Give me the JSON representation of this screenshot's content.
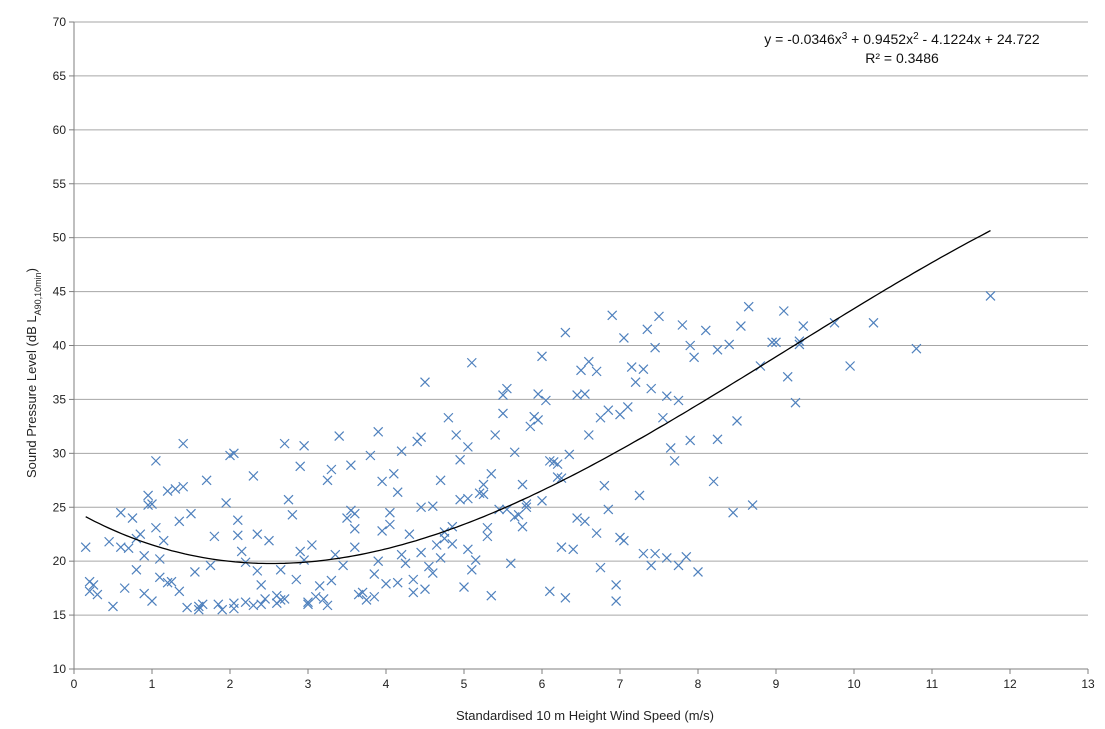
{
  "chart_data": {
    "type": "scatter",
    "title": "",
    "xlabel": "Standardised 10 m Height Wind Speed (m/s)",
    "ylabel_main": "Sound Pressure Level (dB L",
    "ylabel_sub": "A90,10min",
    "ylabel_close": ")",
    "xlim": [
      0,
      13
    ],
    "ylim": [
      10,
      70
    ],
    "x_ticks": [
      "0",
      "1",
      "2",
      "3",
      "4",
      "5",
      "6",
      "7",
      "8",
      "9",
      "10",
      "11",
      "12",
      "13"
    ],
    "y_ticks": [
      "10",
      "15",
      "20",
      "25",
      "30",
      "35",
      "40",
      "45",
      "50",
      "55",
      "60",
      "65",
      "70"
    ],
    "grid": "horizontal",
    "marker": "x",
    "colors": {
      "points": "#4f81bd",
      "trendline": "#000000"
    },
    "trendline": {
      "type": "polynomial",
      "order": 3,
      "coefficients": [
        -0.0346,
        0.9452,
        -4.1224,
        24.722
      ],
      "x_range": [
        0.15,
        11.75
      ],
      "equation_label_1": "y = -0.0346x",
      "equation_label_2": " + 0.9452x",
      "equation_label_3": " - 4.1224x + 24.722",
      "superscript_3": "3",
      "superscript_2": "2",
      "r2_label": "R² = 0.3486"
    },
    "series": [
      {
        "marker": "x",
        "x": [
          0.15,
          0.2,
          0.25,
          0.3,
          0.2,
          0.45,
          0.6,
          0.65,
          0.7,
          0.75,
          0.8,
          0.85,
          0.9,
          0.95,
          1.0,
          1.05,
          1.1,
          0.9,
          1.0,
          1.15,
          1.2,
          1.3,
          1.35,
          1.4,
          1.5,
          1.55,
          1.6,
          1.7,
          1.8,
          1.9,
          2.0,
          2.05,
          2.1,
          2.2,
          2.3,
          2.4,
          2.5,
          2.6,
          2.7,
          2.8,
          2.9,
          3.0,
          1.05,
          1.25,
          1.4,
          0.6,
          0.95,
          1.65,
          1.95,
          2.15,
          2.35,
          2.75,
          2.95,
          3.1,
          3.25,
          3.4,
          3.6,
          3.75,
          3.9,
          4.05,
          4.2,
          4.35,
          4.5,
          4.65,
          4.8,
          4.95,
          5.1,
          5.25,
          5.4,
          5.55,
          5.7,
          5.85,
          6.0,
          6.15,
          6.3,
          6.45,
          6.6,
          6.75,
          6.9,
          7.05,
          7.2,
          7.35,
          7.5,
          7.65,
          7.8,
          7.95,
          8.1,
          8.25,
          8.4,
          8.55,
          8.65,
          8.8,
          9.0,
          9.1,
          9.15,
          9.25,
          9.3,
          9.35,
          9.75,
          9.95,
          10.25,
          10.8,
          11.75,
          4.55,
          5.15,
          6.3,
          6.95,
          7.45,
          7.75,
          8.0,
          8.25,
          8.5,
          8.95,
          9.3,
          3.45,
          3.6,
          3.9,
          4.1,
          4.3,
          4.45,
          4.7,
          4.85,
          5.05,
          5.3,
          5.5,
          5.75,
          5.95,
          6.2,
          6.5,
          6.8,
          7.1,
          7.4,
          7.7,
          7.9,
          2.05,
          2.2,
          2.45,
          2.65,
          2.85,
          3.05,
          3.3,
          3.55,
          3.8,
          4.0,
          4.25,
          4.4,
          4.6,
          4.9,
          5.0,
          5.2,
          5.45,
          5.65,
          5.9,
          6.1,
          6.35,
          6.6,
          6.85,
          7.0,
          7.3,
          7.55,
          7.85,
          3.2,
          3.5,
          3.7,
          3.95,
          4.15,
          4.5,
          4.75,
          5.1,
          5.35,
          5.6,
          5.8,
          6.05,
          6.25,
          6.55,
          6.7,
          6.95,
          7.25,
          7.6,
          2.3,
          2.6,
          2.9,
          3.15,
          3.35,
          3.65,
          3.85,
          4.05,
          4.35,
          4.6,
          4.85,
          5.05,
          5.3,
          5.55,
          5.75,
          6.0,
          6.2,
          6.45,
          6.75,
          7.05,
          7.4,
          0.5,
          0.8,
          1.1,
          1.35,
          1.6,
          1.85,
          2.1,
          2.4,
          2.7,
          3.0,
          3.3,
          3.6,
          3.95,
          4.2,
          4.45,
          4.7,
          4.95,
          5.25,
          5.5,
          5.8,
          6.1,
          6.4,
          6.7,
          7.0,
          7.3,
          7.6,
          7.9,
          8.2,
          8.45,
          8.7,
          1.2,
          1.45,
          1.75,
          2.05,
          2.35,
          2.65,
          2.95,
          3.25,
          3.55,
          3.85,
          4.15,
          4.45,
          4.75,
          5.05,
          5.35,
          5.65,
          5.95,
          6.25,
          6.55,
          6.85,
          7.15,
          7.45,
          7.75
        ],
        "y": [
          21.3,
          17.2,
          17.8,
          16.9,
          18.1,
          21.8,
          24.5,
          17.5,
          21.2,
          24.0,
          19.2,
          22.5,
          17.0,
          26.1,
          16.3,
          29.3,
          20.2,
          20.5,
          25.3,
          21.9,
          18.0,
          26.7,
          17.2,
          30.9,
          24.4,
          19.0,
          15.8,
          27.5,
          22.3,
          15.5,
          29.8,
          30.0,
          23.8,
          16.2,
          27.9,
          17.8,
          21.9,
          16.1,
          30.9,
          24.3,
          28.8,
          16.0,
          23.1,
          18.1,
          26.9,
          21.3,
          25.2,
          16.0,
          25.4,
          20.9,
          22.5,
          25.7,
          30.7,
          16.7,
          27.5,
          31.6,
          23.0,
          16.4,
          32.0,
          24.5,
          30.2,
          17.1,
          36.6,
          21.5,
          33.3,
          25.7,
          38.4,
          27.1,
          31.7,
          36.0,
          24.3,
          32.5,
          39.0,
          29.2,
          41.2,
          35.4,
          38.5,
          33.3,
          42.8,
          40.7,
          36.6,
          41.5,
          42.7,
          30.5,
          41.9,
          38.9,
          41.4,
          39.6,
          40.1,
          41.8,
          43.6,
          38.1,
          40.3,
          43.2,
          37.1,
          34.7,
          40.1,
          41.8,
          42.1,
          38.1,
          42.1,
          39.7,
          44.6,
          19.5,
          20.1,
          16.6,
          17.8,
          20.7,
          19.6,
          19.0,
          31.3,
          33.0,
          40.3,
          40.4,
          19.6,
          21.3,
          20.0,
          28.1,
          22.5,
          25.0,
          27.5,
          23.2,
          30.6,
          22.3,
          33.7,
          27.1,
          35.5,
          29.0,
          37.7,
          27.0,
          34.3,
          36.0,
          29.3,
          31.2,
          16.1,
          19.9,
          16.5,
          19.2,
          18.3,
          21.5,
          18.2,
          24.7,
          29.8,
          17.9,
          19.8,
          31.1,
          25.1,
          31.7,
          17.6,
          26.3,
          24.8,
          30.1,
          33.4,
          17.2,
          29.9,
          31.7,
          24.8,
          22.2,
          20.7,
          33.3,
          20.4,
          16.5,
          24.0,
          17.1,
          22.8,
          26.4,
          17.4,
          22.7,
          19.2,
          28.1,
          19.8,
          25.3,
          34.9,
          21.3,
          23.7,
          37.6,
          16.3,
          26.1,
          20.3,
          15.9,
          16.8,
          20.9,
          17.7,
          20.6,
          16.9,
          18.8,
          23.4,
          18.3,
          18.9,
          21.6,
          21.1,
          23.1,
          24.8,
          23.2,
          25.6,
          27.8,
          24.0,
          19.4,
          21.9,
          19.6,
          15.8,
          22.1,
          18.5,
          23.7,
          15.5,
          16.0,
          22.4,
          16.0,
          16.5,
          16.2,
          28.5,
          24.4,
          27.4,
          20.6,
          31.5,
          20.3,
          29.4,
          26.2,
          35.4,
          25.0,
          29.3,
          21.1,
          22.6,
          33.6,
          37.8,
          35.3,
          40.0,
          27.4,
          24.5,
          25.2,
          26.5,
          15.7,
          19.6,
          15.6,
          19.1,
          16.4,
          20.1,
          15.9,
          28.9,
          16.7,
          18.0,
          20.8,
          22.1,
          25.8,
          16.8,
          24.1,
          33.1,
          27.7,
          35.5,
          34.0,
          38.0,
          39.8,
          34.9
        ]
      }
    ]
  }
}
